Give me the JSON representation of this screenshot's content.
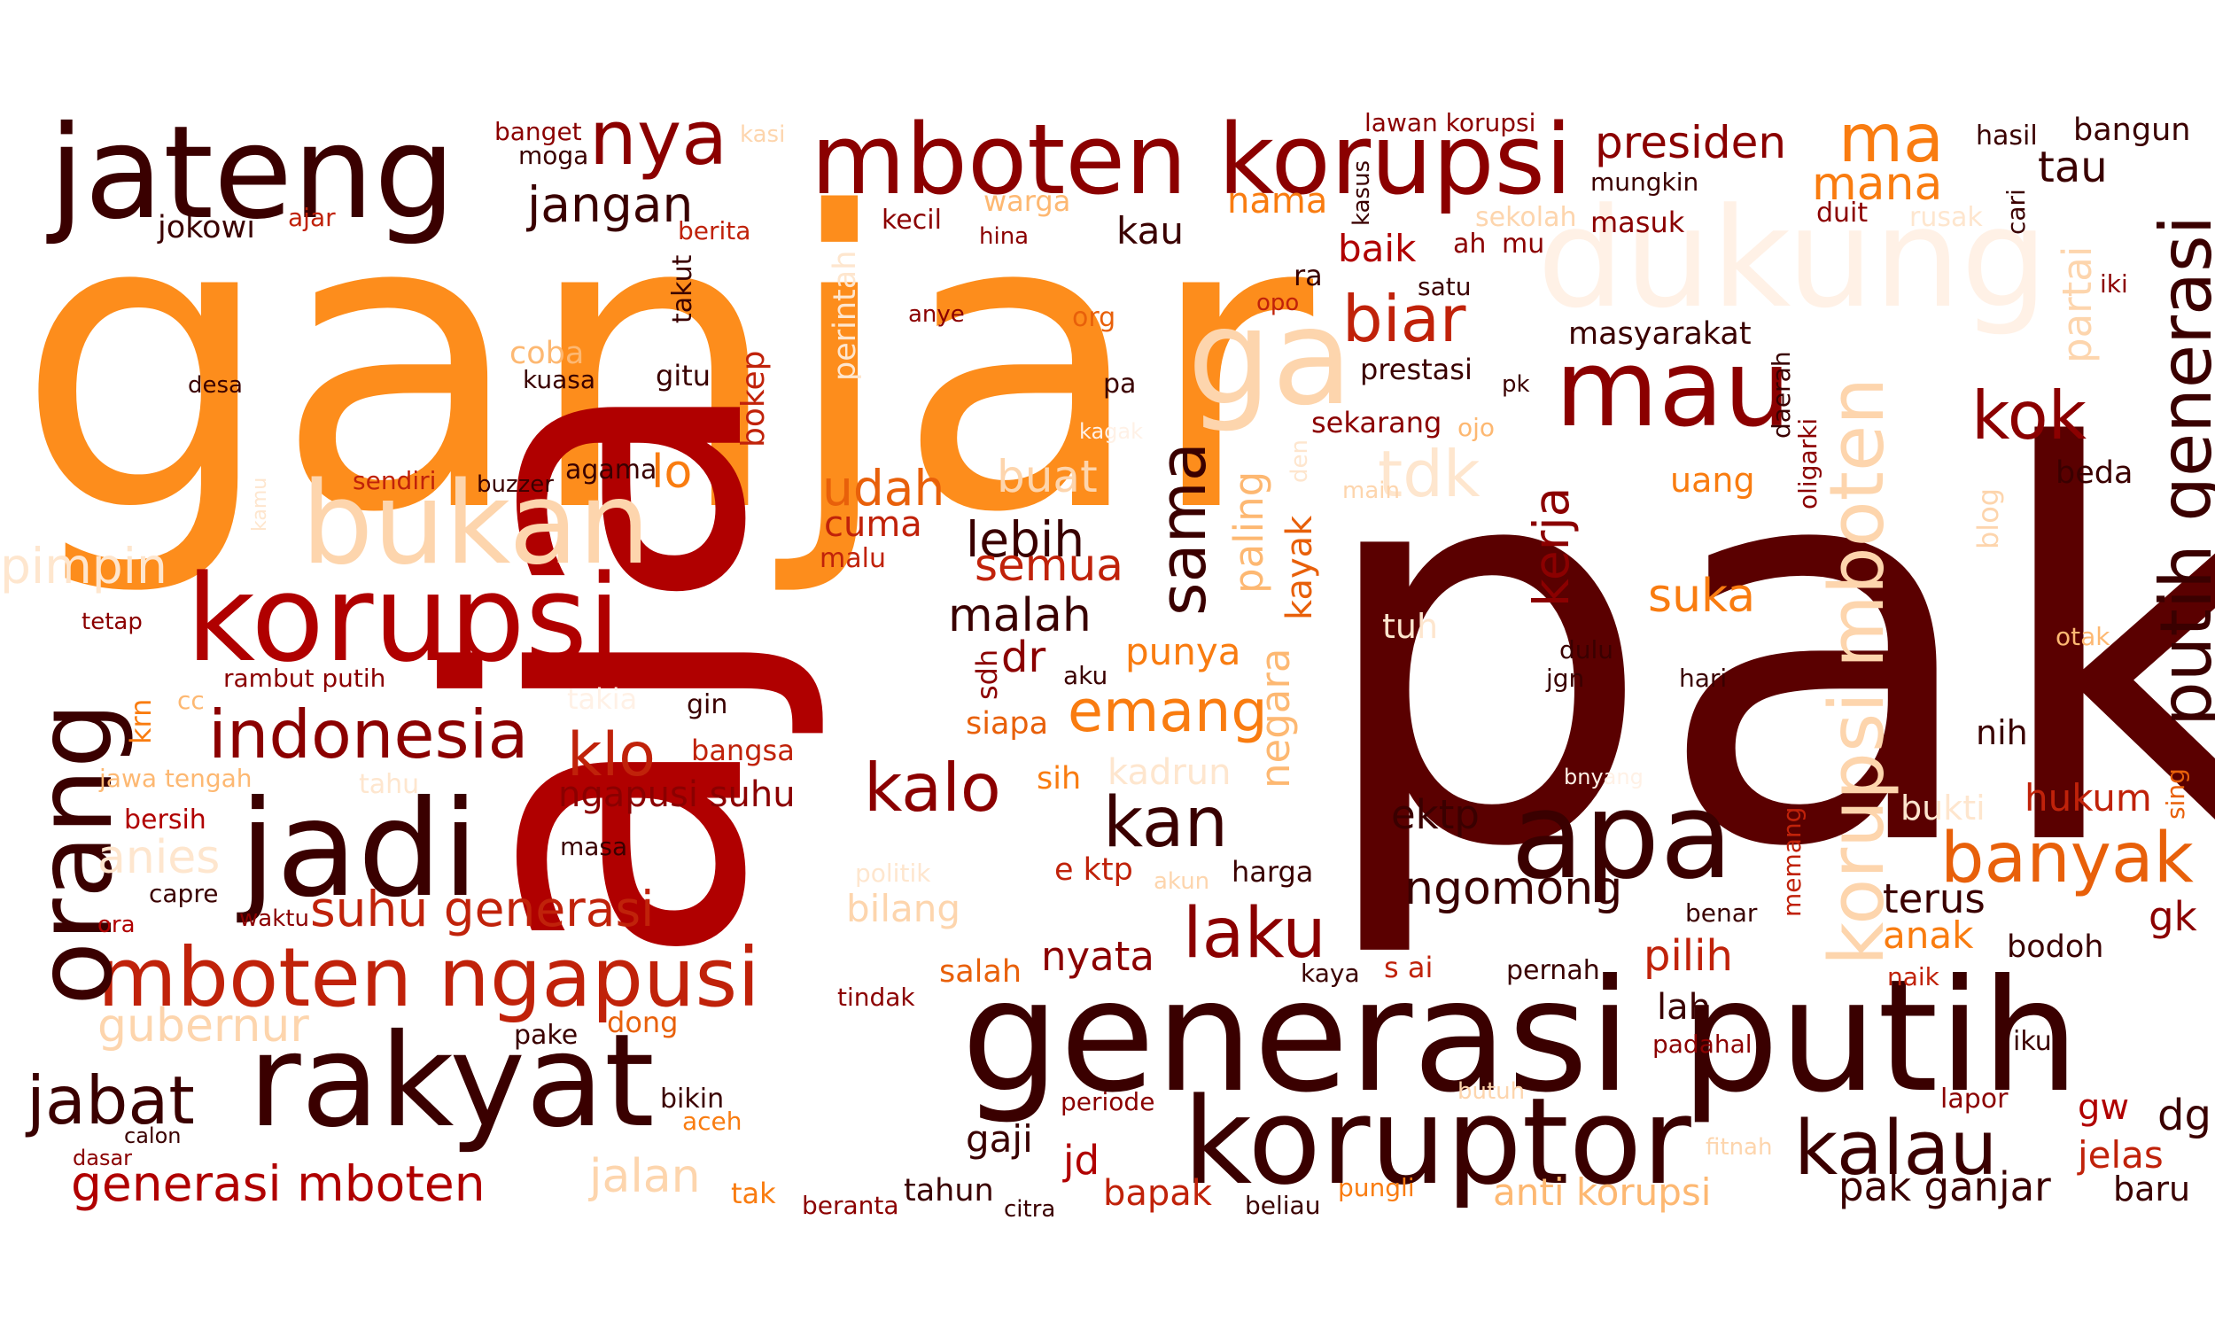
{
  "palette": {
    "c1": "#5a0000",
    "c2": "#3a0000",
    "c3": "#8b0000",
    "c4": "#b00000",
    "c5": "#c0220a",
    "c6": "#d63a0a",
    "c7": "#e8600a",
    "c8": "#f97c10",
    "c9": "#fd8d1c",
    "c10": "#fdb872",
    "c11": "#fdd5ad",
    "c12": "#fee6ce",
    "c13": "#fff1e6"
  },
  "words": [
    {
      "text": "ganjar",
      "color": "c9"
    },
    {
      "text": "pak",
      "color": "c1"
    },
    {
      "text": "aja",
      "color": "c4"
    },
    {
      "text": "generasi putih",
      "color": "c2"
    },
    {
      "text": "mboten korupsi",
      "color": "c3"
    },
    {
      "text": "jateng",
      "color": "c2"
    },
    {
      "text": "korupsi",
      "color": "c4"
    },
    {
      "text": "bukan",
      "color": "c11"
    },
    {
      "text": "ga",
      "color": "c11"
    },
    {
      "text": "dukung",
      "color": "c13"
    },
    {
      "text": "jadi",
      "color": "c2"
    },
    {
      "text": "rakyat",
      "color": "c2"
    },
    {
      "text": "koruptor",
      "color": "c2"
    },
    {
      "text": "mboten ngapusi",
      "color": "c5"
    },
    {
      "text": "orang",
      "color": "c2"
    },
    {
      "text": "apa",
      "color": "c2"
    },
    {
      "text": "mau",
      "color": "c3"
    },
    {
      "text": "korupsi mboten",
      "color": "c11"
    },
    {
      "text": "putih generasi",
      "color": "c2"
    },
    {
      "text": "nya",
      "color": "c3"
    },
    {
      "text": "indonesia",
      "color": "c3"
    },
    {
      "text": "biar",
      "color": "c5"
    },
    {
      "text": "kok",
      "color": "c3"
    },
    {
      "text": "kalau",
      "color": "c2"
    },
    {
      "text": "banyak",
      "color": "c7"
    },
    {
      "text": "ma",
      "color": "c8"
    },
    {
      "text": "sama",
      "color": "c2"
    },
    {
      "text": "kalo",
      "color": "c3"
    },
    {
      "text": "laku",
      "color": "c3"
    },
    {
      "text": "kan",
      "color": "c2"
    },
    {
      "text": "emang",
      "color": "c8"
    },
    {
      "text": "suhu generasi",
      "color": "c5"
    },
    {
      "text": "jabat",
      "color": "c2"
    },
    {
      "text": "generasi mboten",
      "color": "c4"
    },
    {
      "text": "klo",
      "color": "c5"
    },
    {
      "text": "presiden",
      "color": "c3"
    },
    {
      "text": "jangan",
      "color": "c2"
    },
    {
      "text": "tdk",
      "color": "c12"
    },
    {
      "text": "udah",
      "color": "c7"
    },
    {
      "text": "lebih",
      "color": "c2"
    },
    {
      "text": "ngomong",
      "color": "c2"
    },
    {
      "text": "mana",
      "color": "c8"
    },
    {
      "text": "pimpin",
      "color": "c12"
    },
    {
      "text": "gubernur",
      "color": "c11"
    },
    {
      "text": "jalan",
      "color": "c11"
    },
    {
      "text": "anies",
      "color": "c12"
    },
    {
      "text": "kerja",
      "color": "c3"
    },
    {
      "text": "malah",
      "color": "c2"
    },
    {
      "text": "semua",
      "color": "c5"
    },
    {
      "text": "buat",
      "color": "c11"
    },
    {
      "text": "lo",
      "color": "c8"
    },
    {
      "text": "suka",
      "color": "c8"
    },
    {
      "text": "paling",
      "color": "c10"
    },
    {
      "text": "negara",
      "color": "c10"
    },
    {
      "text": "kayak",
      "color": "c7"
    },
    {
      "text": "partai",
      "color": "c11"
    },
    {
      "text": "tau",
      "color": "c2"
    },
    {
      "text": "ektp",
      "color": "c2"
    },
    {
      "text": "nyata",
      "color": "c3"
    },
    {
      "text": "pilih",
      "color": "c5"
    },
    {
      "text": "terus",
      "color": "c2"
    },
    {
      "text": "anak",
      "color": "c8"
    },
    {
      "text": "pak ganjar",
      "color": "c2"
    },
    {
      "text": "anti korupsi",
      "color": "c10"
    },
    {
      "text": "hukum",
      "color": "c5"
    },
    {
      "text": "cuma",
      "color": "c5"
    },
    {
      "text": "bilang",
      "color": "c11"
    },
    {
      "text": "punya",
      "color": "c8"
    },
    {
      "text": "kadrun",
      "color": "c12"
    },
    {
      "text": "ngapusi suhu",
      "color": "c3"
    },
    {
      "text": "gaji",
      "color": "c2"
    },
    {
      "text": "jd",
      "color": "c4"
    },
    {
      "text": "bapak",
      "color": "c5"
    },
    {
      "text": "baik",
      "color": "c4"
    },
    {
      "text": "kau",
      "color": "c2"
    },
    {
      "text": "nama",
      "color": "c8"
    },
    {
      "text": "prestasi",
      "color": "c2"
    },
    {
      "text": "sekarang",
      "color": "c3"
    },
    {
      "text": "masyarakat",
      "color": "c2"
    },
    {
      "text": "uang",
      "color": "c8"
    },
    {
      "text": "dr",
      "color": "c3"
    },
    {
      "text": "tuh",
      "color": "c12"
    },
    {
      "text": "bukti",
      "color": "c12"
    },
    {
      "text": "tahun",
      "color": "c2"
    },
    {
      "text": "salah",
      "color": "c7"
    },
    {
      "text": "gw",
      "color": "c4"
    },
    {
      "text": "dg",
      "color": "c2"
    },
    {
      "text": "jelas",
      "color": "c5"
    },
    {
      "text": "baru",
      "color": "c2"
    },
    {
      "text": "lah",
      "color": "c2"
    },
    {
      "text": "gk",
      "color": "c3"
    },
    {
      "text": "nih",
      "color": "c2"
    },
    {
      "text": "bodoh",
      "color": "c2"
    },
    {
      "text": "beda",
      "color": "c2"
    },
    {
      "text": "bangun",
      "color": "c2"
    },
    {
      "text": "hasil",
      "color": "c2"
    },
    {
      "text": "mungkin",
      "color": "c2"
    },
    {
      "text": "duit",
      "color": "c3"
    },
    {
      "text": "rusak",
      "color": "c12"
    },
    {
      "text": "cari",
      "color": "c2"
    },
    {
      "text": "iki",
      "color": "c3"
    },
    {
      "text": "sekolah",
      "color": "c11"
    },
    {
      "text": "masuk",
      "color": "c3"
    },
    {
      "text": "ah",
      "color": "c3"
    },
    {
      "text": "mu",
      "color": "c3"
    },
    {
      "text": "satu",
      "color": "c2"
    },
    {
      "text": "lawan korupsi",
      "color": "c3"
    },
    {
      "text": "kasus",
      "color": "c2"
    },
    {
      "text": "kecil",
      "color": "c3"
    },
    {
      "text": "warga",
      "color": "c10"
    },
    {
      "text": "hina",
      "color": "c3"
    },
    {
      "text": "berita",
      "color": "c5"
    },
    {
      "text": "banget",
      "color": "c3"
    },
    {
      "text": "moga",
      "color": "c2"
    },
    {
      "text": "kasi",
      "color": "c11"
    },
    {
      "text": "jokowi",
      "color": "c2"
    },
    {
      "text": "ajar",
      "color": "c5"
    },
    {
      "text": "perintah",
      "color": "c12"
    },
    {
      "text": "takut",
      "color": "c2"
    },
    {
      "text": "bokep",
      "color": "c5"
    },
    {
      "text": "coba",
      "color": "c10"
    },
    {
      "text": "kuasa",
      "color": "c2"
    },
    {
      "text": "gitu",
      "color": "c2"
    },
    {
      "text": "desa",
      "color": "c2"
    },
    {
      "text": "anye",
      "color": "c3"
    },
    {
      "text": "org",
      "color": "c7"
    },
    {
      "text": "opo",
      "color": "c5"
    },
    {
      "text": "ra",
      "color": "c2"
    },
    {
      "text": "pa",
      "color": "c2"
    },
    {
      "text": "pk",
      "color": "c2"
    },
    {
      "text": "ojo",
      "color": "c10"
    },
    {
      "text": "daerah",
      "color": "c2"
    },
    {
      "text": "oligarki",
      "color": "c3"
    },
    {
      "text": "blog",
      "color": "c11"
    },
    {
      "text": "otak",
      "color": "c10"
    },
    {
      "text": "sing",
      "color": "c7"
    },
    {
      "text": "main",
      "color": "c11"
    },
    {
      "text": "den",
      "color": "c12"
    },
    {
      "text": "kamu",
      "color": "c12"
    },
    {
      "text": "sendiri",
      "color": "c5"
    },
    {
      "text": "buzzer",
      "color": "c2"
    },
    {
      "text": "agama",
      "color": "c2"
    },
    {
      "text": "tetap",
      "color": "c3"
    },
    {
      "text": "rambut putih",
      "color": "c3"
    },
    {
      "text": "cc",
      "color": "c10"
    },
    {
      "text": "krn",
      "color": "c8"
    },
    {
      "text": "gin",
      "color": "c2"
    },
    {
      "text": "takia",
      "color": "c13"
    },
    {
      "text": "jawa tengah",
      "color": "c10"
    },
    {
      "text": "tahu",
      "color": "c12"
    },
    {
      "text": "bangsa",
      "color": "c5"
    },
    {
      "text": "bersih",
      "color": "c4"
    },
    {
      "text": "masa",
      "color": "c2"
    },
    {
      "text": "capre",
      "color": "c2"
    },
    {
      "text": "ora",
      "color": "c4"
    },
    {
      "text": "waktu",
      "color": "c3"
    },
    {
      "text": "malu",
      "color": "c5"
    },
    {
      "text": "aku",
      "color": "c2"
    },
    {
      "text": "sdh",
      "color": "c3"
    },
    {
      "text": "siapa",
      "color": "c7"
    },
    {
      "text": "sih",
      "color": "c8"
    },
    {
      "text": "e ktp",
      "color": "c5"
    },
    {
      "text": "akun",
      "color": "c11"
    },
    {
      "text": "politik",
      "color": "c12"
    },
    {
      "text": "harga",
      "color": "c2"
    },
    {
      "text": "pake",
      "color": "c2"
    },
    {
      "text": "dong",
      "color": "c7"
    },
    {
      "text": "tindak",
      "color": "c3"
    },
    {
      "text": "calon",
      "color": "c2"
    },
    {
      "text": "dasar",
      "color": "c3"
    },
    {
      "text": "bikin",
      "color": "c2"
    },
    {
      "text": "aceh",
      "color": "c8"
    },
    {
      "text": "periode",
      "color": "c3"
    },
    {
      "text": "tak",
      "color": "c8"
    },
    {
      "text": "beranta",
      "color": "c3"
    },
    {
      "text": "citra",
      "color": "c2"
    },
    {
      "text": "beliau",
      "color": "c2"
    },
    {
      "text": "pungli",
      "color": "c8"
    },
    {
      "text": "butuh",
      "color": "c11"
    },
    {
      "text": "fitnah",
      "color": "c11"
    },
    {
      "text": "padahal",
      "color": "c3"
    },
    {
      "text": "kaya",
      "color": "c2"
    },
    {
      "text": "s ai",
      "color": "c5"
    },
    {
      "text": "pernah",
      "color": "c2"
    },
    {
      "text": "benar",
      "color": "c2"
    },
    {
      "text": "memang",
      "color": "c5"
    },
    {
      "text": "naik",
      "color": "c5"
    },
    {
      "text": "ikut",
      "color": "c2"
    },
    {
      "text": "lapor",
      "color": "c3"
    },
    {
      "text": "dulu",
      "color": "c2"
    },
    {
      "text": "jgn",
      "color": "c2"
    },
    {
      "text": "hari",
      "color": "c2"
    },
    {
      "text": "kagak",
      "color": "c13"
    },
    {
      "text": "bnyang",
      "color": "c13"
    }
  ]
}
